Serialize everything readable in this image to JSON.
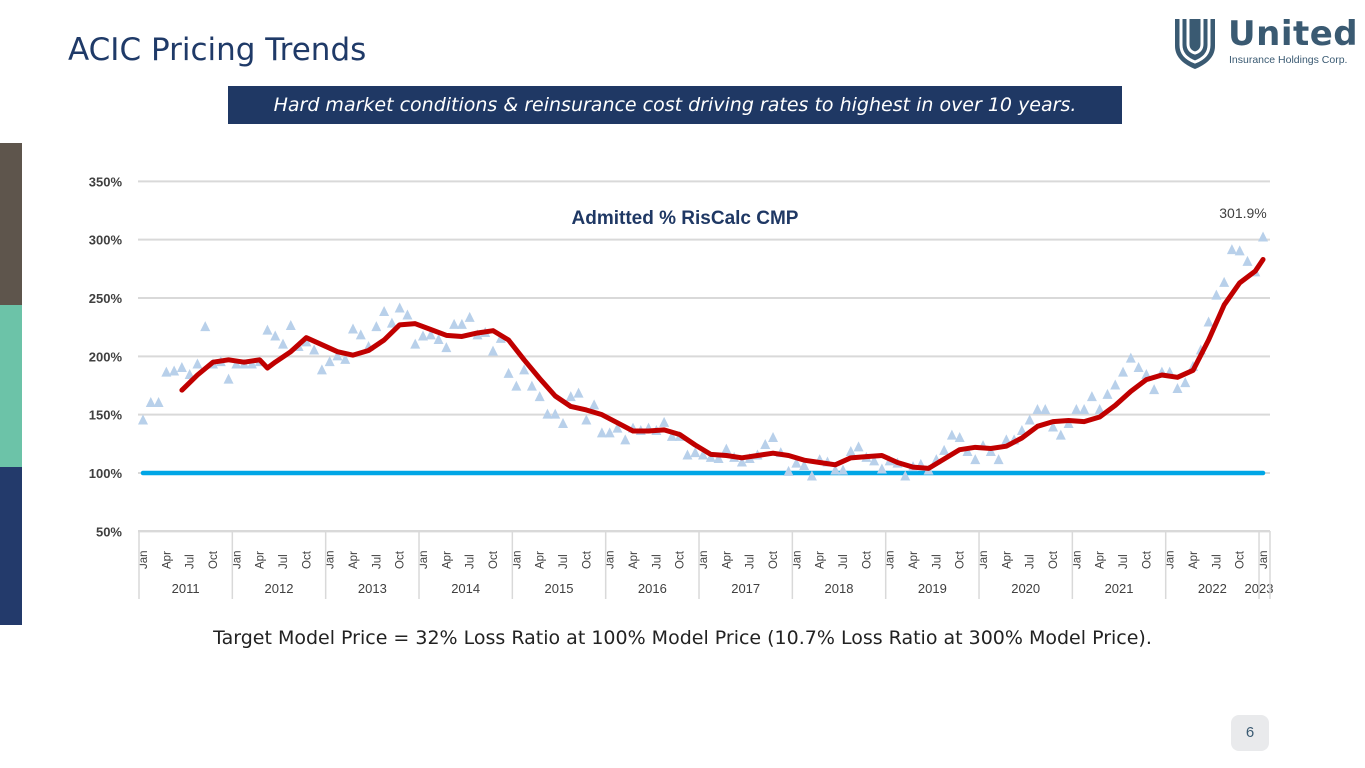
{
  "slide": {
    "title": "ACIC Pricing Trends",
    "banner": "Hard market conditions & reinsurance cost driving rates to highest in over 10 years.",
    "footer": "Target Model Price = 32% Loss Ratio at 100% Model Price (10.7% Loss Ratio at 300% Model Price).",
    "page_number": "6",
    "accent_colors": [
      "#5e554c",
      "#6cc3a8",
      "#233a6b"
    ]
  },
  "logo": {
    "word": "United",
    "subtitle": "Insurance Holdings Corp.",
    "icon": "shield-u-icon",
    "color": "#3a5a72"
  },
  "chart_data": {
    "type": "scatter",
    "title": "Admitted % RisCalc CMP",
    "xlabel": "",
    "ylabel": "",
    "ylim": [
      50,
      350
    ],
    "yticks": [
      "350%",
      "300%",
      "250%",
      "200%",
      "150%",
      "100%",
      "50%"
    ],
    "ytick_values": [
      350,
      300,
      250,
      200,
      150,
      100,
      50
    ],
    "grid": true,
    "month_labels": [
      "Jan",
      "Apr",
      "Jul",
      "Oct"
    ],
    "years": [
      "2011",
      "2012",
      "2013",
      "2014",
      "2015",
      "2016",
      "2017",
      "2018",
      "2019",
      "2020",
      "2021",
      "2022",
      "2023"
    ],
    "x_start": "2011-01",
    "x_end": "2023-01",
    "annotation": {
      "text": "301.9%",
      "date": "2023-01",
      "value": 301.9
    },
    "series": [
      {
        "kind": "scatter-triangles",
        "color": "#b8d0ea",
        "values": [
          145,
          160,
          160,
          186,
          187,
          190,
          184,
          193,
          225,
          193,
          195,
          180,
          193,
          193,
          193,
          195,
          222,
          217,
          210,
          226,
          208,
          212,
          205,
          188,
          195,
          200,
          197,
          223,
          218,
          208,
          225,
          238,
          228,
          241,
          235,
          210,
          217,
          218,
          214,
          207,
          227,
          227,
          233,
          218,
          220,
          204,
          215,
          185,
          174,
          188,
          174,
          165,
          150,
          150,
          142,
          165,
          168,
          145,
          158,
          134,
          134,
          138,
          128,
          138,
          136,
          138,
          136,
          143,
          131,
          131,
          115,
          117,
          115,
          113,
          112,
          120,
          113,
          109,
          112,
          115,
          124,
          130,
          117,
          101,
          108,
          106,
          97,
          111,
          109,
          102,
          102,
          118,
          122,
          113,
          110,
          103,
          110,
          108,
          97,
          105,
          107,
          102,
          111,
          119,
          132,
          130,
          118,
          111,
          123,
          118,
          111,
          128,
          128,
          136,
          145,
          154,
          154,
          139,
          132,
          142,
          154,
          154,
          165,
          154,
          167,
          175,
          186,
          198,
          190,
          184,
          171,
          186,
          186,
          172,
          177,
          191,
          205,
          229,
          252,
          263,
          291,
          290,
          281,
          272,
          301.9
        ]
      },
      {
        "kind": "moving-average-line",
        "color": "#c00000",
        "points": [
          [
            "2011-06",
            171
          ],
          [
            "2011-08",
            184
          ],
          [
            "2011-10",
            195
          ],
          [
            "2011-12",
            197
          ],
          [
            "2012-02",
            195
          ],
          [
            "2012-04",
            197
          ],
          [
            "2012-05",
            190
          ],
          [
            "2012-06",
            195
          ],
          [
            "2012-08",
            204
          ],
          [
            "2012-10",
            216
          ],
          [
            "2012-12",
            210
          ],
          [
            "2013-02",
            204
          ],
          [
            "2013-04",
            201
          ],
          [
            "2013-06",
            205
          ],
          [
            "2013-08",
            214
          ],
          [
            "2013-10",
            227
          ],
          [
            "2013-12",
            228
          ],
          [
            "2014-02",
            223
          ],
          [
            "2014-04",
            218
          ],
          [
            "2014-06",
            217
          ],
          [
            "2014-08",
            220
          ],
          [
            "2014-10",
            222
          ],
          [
            "2014-12",
            214
          ],
          [
            "2015-02",
            197
          ],
          [
            "2015-04",
            181
          ],
          [
            "2015-06",
            166
          ],
          [
            "2015-08",
            157
          ],
          [
            "2015-10",
            154
          ],
          [
            "2015-12",
            150
          ],
          [
            "2016-02",
            143
          ],
          [
            "2016-04",
            136
          ],
          [
            "2016-06",
            136
          ],
          [
            "2016-08",
            137
          ],
          [
            "2016-10",
            133
          ],
          [
            "2016-12",
            124
          ],
          [
            "2017-02",
            116
          ],
          [
            "2017-04",
            115
          ],
          [
            "2017-06",
            113
          ],
          [
            "2017-08",
            115
          ],
          [
            "2017-10",
            117
          ],
          [
            "2017-12",
            115
          ],
          [
            "2018-02",
            111
          ],
          [
            "2018-04",
            109
          ],
          [
            "2018-06",
            107
          ],
          [
            "2018-08",
            113
          ],
          [
            "2018-10",
            114
          ],
          [
            "2018-12",
            115
          ],
          [
            "2019-02",
            109
          ],
          [
            "2019-04",
            105
          ],
          [
            "2019-06",
            104
          ],
          [
            "2019-08",
            112
          ],
          [
            "2019-10",
            120
          ],
          [
            "2019-12",
            122
          ],
          [
            "2020-02",
            121
          ],
          [
            "2020-04",
            123
          ],
          [
            "2020-06",
            130
          ],
          [
            "2020-08",
            140
          ],
          [
            "2020-10",
            144
          ],
          [
            "2020-12",
            145
          ],
          [
            "2021-02",
            144
          ],
          [
            "2021-04",
            148
          ],
          [
            "2021-06",
            158
          ],
          [
            "2021-08",
            170
          ],
          [
            "2021-10",
            180
          ],
          [
            "2021-12",
            184
          ],
          [
            "2022-02",
            182
          ],
          [
            "2022-04",
            188
          ],
          [
            "2022-06",
            214
          ],
          [
            "2022-08",
            244
          ],
          [
            "2022-10",
            263
          ],
          [
            "2022-12",
            273
          ],
          [
            "2023-01",
            283
          ]
        ]
      },
      {
        "kind": "reference-line",
        "color": "#00a6e6",
        "value": 100
      }
    ]
  }
}
